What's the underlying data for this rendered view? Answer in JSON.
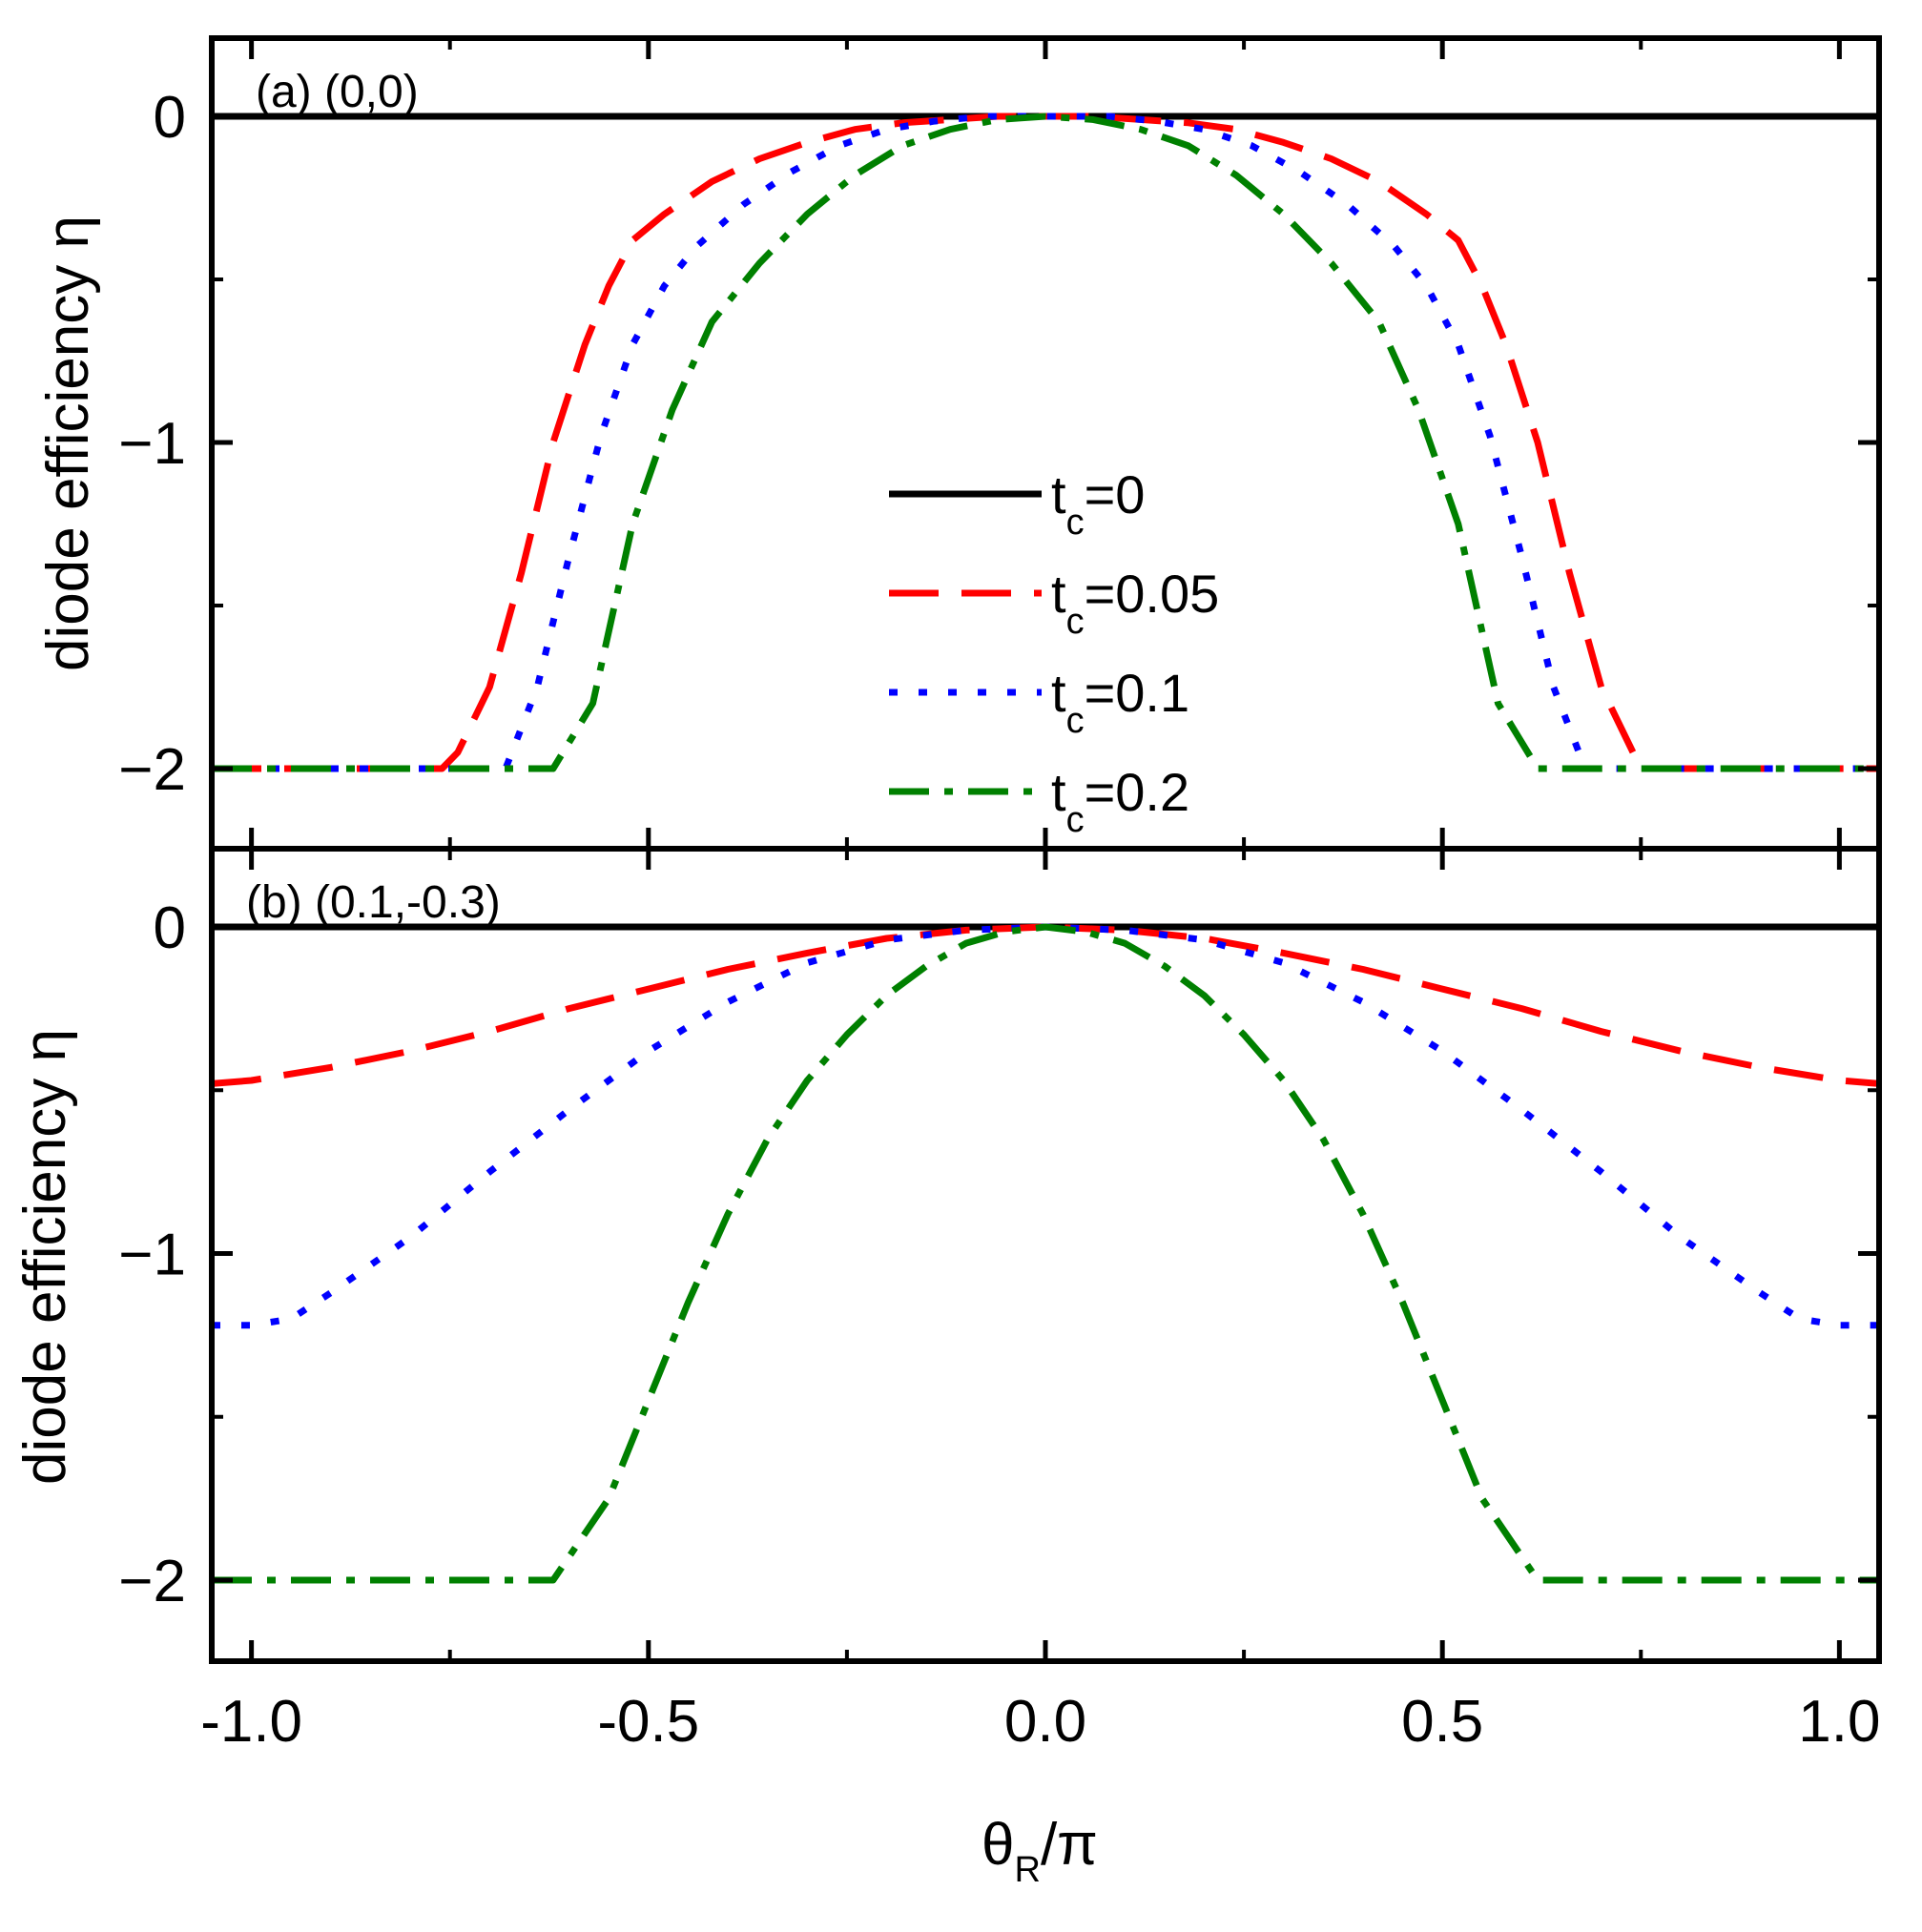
{
  "chart_data": [
    {
      "panel": "a",
      "type": "line",
      "panel_label": "(a) (0,0)",
      "ylabel": "diode efficiency η",
      "xlabel": "θR/π",
      "xlim": [
        -1.05,
        1.05
      ],
      "ylim": [
        -2.3,
        0.3
      ],
      "yticks": [
        0,
        -1,
        -2
      ],
      "ytick_labels": [
        "0",
        "-1",
        "-2"
      ],
      "series": [
        {
          "name": "tc=0",
          "color": "#000000",
          "style": "solid",
          "x": [
            -1.05,
            1.05
          ],
          "y": [
            0,
            0
          ]
        },
        {
          "name": "tc=0.05",
          "color": "#ff0000",
          "style": "dashed",
          "x": [
            -1.05,
            -0.76,
            -0.74,
            -0.7,
            -0.66,
            -0.62,
            -0.58,
            -0.55,
            -0.52,
            -0.48,
            -0.42,
            -0.36,
            -0.3,
            -0.24,
            -0.18,
            -0.12,
            -0.06,
            0,
            0.06,
            0.12,
            0.18,
            0.24,
            0.3,
            0.36,
            0.42,
            0.48,
            0.52,
            0.55,
            0.58,
            0.62,
            0.66,
            0.7,
            0.74,
            0.76,
            1.05
          ],
          "y": [
            -2,
            -2,
            -1.95,
            -1.75,
            -1.4,
            -1.0,
            -0.7,
            -0.52,
            -0.38,
            -0.3,
            -0.2,
            -0.13,
            -0.08,
            -0.04,
            -0.02,
            -0.01,
            0,
            0,
            0,
            -0.01,
            -0.02,
            -0.04,
            -0.08,
            -0.13,
            -0.2,
            -0.3,
            -0.38,
            -0.52,
            -0.7,
            -1.0,
            -1.4,
            -1.75,
            -1.95,
            -2,
            -2
          ]
        },
        {
          "name": "tc=0.1",
          "color": "#0000ff",
          "style": "dotted",
          "x": [
            -1.05,
            -0.68,
            -0.64,
            -0.6,
            -0.56,
            -0.52,
            -0.48,
            -0.44,
            -0.38,
            -0.32,
            -0.26,
            -0.2,
            -0.14,
            -0.08,
            0,
            0.08,
            0.14,
            0.2,
            0.26,
            0.32,
            0.38,
            0.44,
            0.48,
            0.52,
            0.56,
            0.6,
            0.64,
            0.68,
            1.05
          ],
          "y": [
            -2,
            -2,
            -1.75,
            -1.35,
            -0.98,
            -0.7,
            -0.52,
            -0.4,
            -0.27,
            -0.17,
            -0.09,
            -0.04,
            -0.015,
            0,
            0,
            0,
            -0.015,
            -0.04,
            -0.09,
            -0.17,
            -0.27,
            -0.4,
            -0.52,
            -0.7,
            -0.98,
            -1.35,
            -1.75,
            -2,
            -2
          ]
        },
        {
          "name": "tc=0.2",
          "color": "#008000",
          "style": "dashdot",
          "x": [
            -1.05,
            -0.62,
            -0.57,
            -0.52,
            -0.47,
            -0.42,
            -0.36,
            -0.3,
            -0.24,
            -0.18,
            -0.12,
            -0.06,
            0,
            0.06,
            0.12,
            0.18,
            0.24,
            0.3,
            0.36,
            0.42,
            0.47,
            0.52,
            0.57,
            0.62,
            1.05
          ],
          "y": [
            -2,
            -2,
            -1.8,
            -1.25,
            -0.9,
            -0.63,
            -0.45,
            -0.3,
            -0.18,
            -0.09,
            -0.04,
            -0.01,
            0,
            -0.01,
            -0.04,
            -0.09,
            -0.18,
            -0.3,
            -0.45,
            -0.63,
            -0.9,
            -1.25,
            -1.8,
            -2,
            -2
          ]
        }
      ]
    },
    {
      "panel": "b",
      "type": "line",
      "panel_label": "(b) (0.1,-0.3)",
      "ylabel": "diode efficiency η",
      "xlabel": "θR/π",
      "xlim": [
        -1.05,
        1.05
      ],
      "ylim": [
        -2.3,
        0.3
      ],
      "yticks": [
        0,
        -1,
        -2
      ],
      "ytick_labels": [
        "0",
        "-1",
        "-2"
      ],
      "xticks": [
        -1.0,
        -0.5,
        0.0,
        0.5,
        1.0
      ],
      "xtick_labels": [
        "-1.0",
        "-0.5",
        "0.0",
        "0.5",
        "1.0"
      ],
      "series": [
        {
          "name": "tc=0",
          "color": "#000000",
          "style": "solid",
          "x": [
            -1.05,
            1.05
          ],
          "y": [
            0,
            0
          ]
        },
        {
          "name": "tc=0.05",
          "color": "#ff0000",
          "style": "dashed",
          "x": [
            -1.05,
            -1.0,
            -0.9,
            -0.8,
            -0.7,
            -0.6,
            -0.5,
            -0.4,
            -0.3,
            -0.2,
            -0.1,
            0,
            0.1,
            0.2,
            0.3,
            0.4,
            0.5,
            0.6,
            0.7,
            0.8,
            0.9,
            1.0,
            1.05
          ],
          "y": [
            -0.48,
            -0.47,
            -0.43,
            -0.38,
            -0.32,
            -0.25,
            -0.19,
            -0.13,
            -0.08,
            -0.035,
            -0.01,
            0,
            -0.01,
            -0.035,
            -0.08,
            -0.13,
            -0.19,
            -0.25,
            -0.32,
            -0.38,
            -0.43,
            -0.47,
            -0.48
          ]
        },
        {
          "name": "tc=0.1",
          "color": "#0000ff",
          "style": "dotted",
          "x": [
            -1.05,
            -1.0,
            -0.95,
            -0.9,
            -0.8,
            -0.7,
            -0.6,
            -0.5,
            -0.4,
            -0.3,
            -0.2,
            -0.1,
            0,
            0.1,
            0.2,
            0.3,
            0.4,
            0.5,
            0.6,
            0.7,
            0.8,
            0.9,
            0.95,
            1.0,
            1.05
          ],
          "y": [
            -1.22,
            -1.22,
            -1.2,
            -1.12,
            -0.95,
            -0.75,
            -0.56,
            -0.38,
            -0.23,
            -0.11,
            -0.04,
            -0.01,
            0,
            -0.01,
            -0.04,
            -0.11,
            -0.23,
            -0.38,
            -0.56,
            -0.75,
            -0.95,
            -1.12,
            -1.2,
            -1.22,
            -1.22
          ]
        },
        {
          "name": "tc=0.2",
          "color": "#008000",
          "style": "dashdot",
          "x": [
            -1.05,
            -0.62,
            -0.55,
            -0.5,
            -0.45,
            -0.4,
            -0.35,
            -0.3,
            -0.25,
            -0.2,
            -0.15,
            -0.1,
            -0.05,
            0,
            0.05,
            0.1,
            0.15,
            0.2,
            0.25,
            0.3,
            0.35,
            0.4,
            0.45,
            0.5,
            0.55,
            0.62,
            1.05
          ],
          "y": [
            -2,
            -2,
            -1.75,
            -1.45,
            -1.15,
            -0.88,
            -0.65,
            -0.47,
            -0.33,
            -0.21,
            -0.12,
            -0.05,
            -0.015,
            0,
            -0.015,
            -0.05,
            -0.12,
            -0.21,
            -0.33,
            -0.47,
            -0.65,
            -0.88,
            -1.15,
            -1.45,
            -1.75,
            -2,
            -2
          ]
        }
      ]
    }
  ],
  "legend": {
    "placement": "center",
    "entries": [
      {
        "base": "t",
        "sub": "c",
        "value": "=0",
        "color": "#000000",
        "style": "solid"
      },
      {
        "base": "t",
        "sub": "c",
        "value": "=0.05",
        "color": "#ff0000",
        "style": "dashed"
      },
      {
        "base": "t",
        "sub": "c",
        "value": "=0.1",
        "color": "#0000ff",
        "style": "dotted"
      },
      {
        "base": "t",
        "sub": "c",
        "value": "=0.2",
        "color": "#008000",
        "style": "dashdot"
      }
    ]
  },
  "xaxis": {
    "base": "θ",
    "sub": "R",
    "rest": "/π"
  }
}
